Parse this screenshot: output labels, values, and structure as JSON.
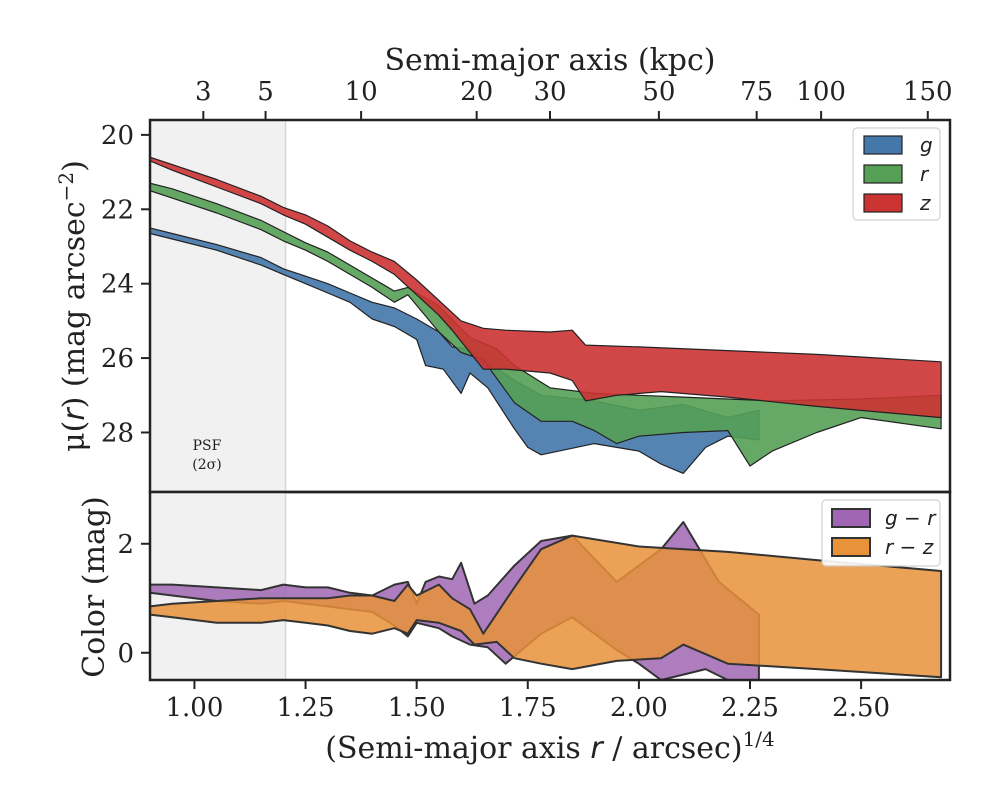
{
  "chart_data": [
    {
      "type": "area",
      "panel": "surface-brightness",
      "ylabel_main": "μ(",
      "ylabel_var": "r",
      "ylabel_rest": ") (mag arcsec",
      "ylabel_sup": "−2",
      "ylabel_close": ")",
      "ylim": [
        29.6,
        19.6
      ],
      "xlim": [
        0.9,
        2.7
      ],
      "yticks": [
        20,
        22,
        24,
        26,
        28
      ],
      "top_axis_title": "Semi-major axis (kpc)",
      "top_ticks": [
        {
          "label": "3",
          "at": 1.02
        },
        {
          "label": "5",
          "at": 1.16
        },
        {
          "label": "10",
          "at": 1.375
        },
        {
          "label": "20",
          "at": 1.635
        },
        {
          "label": "30",
          "at": 1.8
        },
        {
          "label": "50",
          "at": 2.045
        },
        {
          "label": "75",
          "at": 2.265
        },
        {
          "label": "100",
          "at": 2.41
        },
        {
          "label": "150",
          "at": 2.65
        }
      ],
      "shaded_region": {
        "x0": 0.9,
        "x1": 1.205,
        "label_line1": "PSF",
        "label_line2": "(2σ)"
      },
      "legend_position": "top-right",
      "series": [
        {
          "name": "g",
          "color": "#4477aa",
          "upper": [
            [
              0.9,
              22.5
            ],
            [
              0.95,
              22.65
            ],
            [
              1.05,
              22.95
            ],
            [
              1.15,
              23.3
            ],
            [
              1.2,
              23.6
            ],
            [
              1.25,
              23.8
            ],
            [
              1.3,
              24.0
            ],
            [
              1.35,
              24.25
            ],
            [
              1.4,
              24.5
            ],
            [
              1.45,
              24.65
            ],
            [
              1.5,
              24.95
            ],
            [
              1.55,
              25.3
            ],
            [
              1.58,
              25.7
            ],
            [
              1.62,
              25.75
            ],
            [
              1.66,
              26.1
            ],
            [
              1.72,
              26.6
            ],
            [
              1.78,
              27.0
            ],
            [
              1.9,
              27.15
            ],
            [
              2.0,
              27.4
            ],
            [
              2.1,
              27.25
            ],
            [
              2.2,
              27.6
            ],
            [
              2.27,
              27.4
            ]
          ],
          "lower": [
            [
              0.9,
              22.65
            ],
            [
              0.95,
              22.8
            ],
            [
              1.05,
              23.1
            ],
            [
              1.15,
              23.5
            ],
            [
              1.2,
              23.75
            ],
            [
              1.25,
              24.0
            ],
            [
              1.3,
              24.25
            ],
            [
              1.35,
              24.5
            ],
            [
              1.4,
              24.95
            ],
            [
              1.45,
              25.15
            ],
            [
              1.5,
              25.5
            ],
            [
              1.52,
              26.2
            ],
            [
              1.56,
              26.3
            ],
            [
              1.6,
              26.95
            ],
            [
              1.62,
              26.4
            ],
            [
              1.66,
              26.8
            ],
            [
              1.72,
              27.9
            ],
            [
              1.75,
              28.4
            ],
            [
              1.78,
              28.6
            ],
            [
              1.9,
              28.3
            ],
            [
              2.0,
              28.5
            ],
            [
              2.05,
              28.85
            ],
            [
              2.1,
              29.1
            ],
            [
              2.15,
              28.4
            ],
            [
              2.2,
              28.1
            ],
            [
              2.27,
              28.2
            ]
          ]
        },
        {
          "name": "r",
          "color": "#55a055",
          "upper": [
            [
              0.9,
              21.3
            ],
            [
              0.95,
              21.45
            ],
            [
              1.05,
              21.85
            ],
            [
              1.15,
              22.3
            ],
            [
              1.2,
              22.6
            ],
            [
              1.25,
              22.9
            ],
            [
              1.3,
              23.15
            ],
            [
              1.35,
              23.5
            ],
            [
              1.4,
              23.85
            ],
            [
              1.45,
              24.2
            ],
            [
              1.48,
              24.1
            ],
            [
              1.55,
              24.6
            ],
            [
              1.62,
              25.45
            ],
            [
              1.68,
              25.75
            ],
            [
              1.72,
              26.2
            ],
            [
              1.8,
              26.8
            ],
            [
              1.9,
              26.95
            ],
            [
              2.0,
              27.0
            ],
            [
              2.1,
              27.05
            ],
            [
              2.2,
              27.1
            ],
            [
              2.3,
              27.15
            ],
            [
              2.5,
              27.1
            ],
            [
              2.68,
              27.0
            ]
          ],
          "lower": [
            [
              0.9,
              21.5
            ],
            [
              0.95,
              21.7
            ],
            [
              1.05,
              22.1
            ],
            [
              1.15,
              22.55
            ],
            [
              1.2,
              22.85
            ],
            [
              1.25,
              23.1
            ],
            [
              1.3,
              23.4
            ],
            [
              1.35,
              23.75
            ],
            [
              1.4,
              24.1
            ],
            [
              1.45,
              24.5
            ],
            [
              1.48,
              24.3
            ],
            [
              1.55,
              25.3
            ],
            [
              1.6,
              25.85
            ],
            [
              1.65,
              26.05
            ],
            [
              1.72,
              27.2
            ],
            [
              1.78,
              27.7
            ],
            [
              1.85,
              27.7
            ],
            [
              1.9,
              27.95
            ],
            [
              1.95,
              28.3
            ],
            [
              2.0,
              28.1
            ],
            [
              2.1,
              28.0
            ],
            [
              2.2,
              27.95
            ],
            [
              2.25,
              28.9
            ],
            [
              2.3,
              28.5
            ],
            [
              2.4,
              28.0
            ],
            [
              2.5,
              27.6
            ],
            [
              2.68,
              27.9
            ]
          ]
        },
        {
          "name": "z",
          "color": "#cc3333",
          "upper": [
            [
              0.9,
              20.6
            ],
            [
              0.95,
              20.8
            ],
            [
              1.05,
              21.2
            ],
            [
              1.15,
              21.65
            ],
            [
              1.2,
              21.95
            ],
            [
              1.25,
              22.15
            ],
            [
              1.3,
              22.45
            ],
            [
              1.35,
              22.85
            ],
            [
              1.4,
              23.15
            ],
            [
              1.45,
              23.4
            ],
            [
              1.5,
              23.9
            ],
            [
              1.55,
              24.45
            ],
            [
              1.6,
              25.0
            ],
            [
              1.65,
              25.2
            ],
            [
              1.7,
              25.25
            ],
            [
              1.8,
              25.3
            ],
            [
              1.85,
              25.25
            ],
            [
              1.88,
              25.65
            ],
            [
              2.0,
              25.7
            ],
            [
              2.2,
              25.8
            ],
            [
              2.4,
              25.9
            ],
            [
              2.68,
              26.1
            ]
          ],
          "lower": [
            [
              0.9,
              20.7
            ],
            [
              0.95,
              20.95
            ],
            [
              1.05,
              21.4
            ],
            [
              1.15,
              21.85
            ],
            [
              1.2,
              22.15
            ],
            [
              1.25,
              22.4
            ],
            [
              1.3,
              22.75
            ],
            [
              1.35,
              23.1
            ],
            [
              1.4,
              23.4
            ],
            [
              1.45,
              23.75
            ],
            [
              1.5,
              24.3
            ],
            [
              1.55,
              24.85
            ],
            [
              1.58,
              25.25
            ],
            [
              1.62,
              25.85
            ],
            [
              1.65,
              26.3
            ],
            [
              1.7,
              26.3
            ],
            [
              1.8,
              26.4
            ],
            [
              1.85,
              26.6
            ],
            [
              1.88,
              27.15
            ],
            [
              1.95,
              27.0
            ],
            [
              2.05,
              26.9
            ],
            [
              2.2,
              27.05
            ],
            [
              2.4,
              27.3
            ],
            [
              2.68,
              27.6
            ]
          ]
        }
      ]
    },
    {
      "type": "area",
      "panel": "color",
      "ylabel": "Color (mag)",
      "ylim": [
        -0.5,
        2.95
      ],
      "xlim": [
        0.9,
        2.7
      ],
      "yticks": [
        0,
        2
      ],
      "xticks": [
        "1.00",
        "1.25",
        "1.50",
        "1.75",
        "2.00",
        "2.25",
        "2.50"
      ],
      "xtick_values": [
        1.0,
        1.25,
        1.5,
        1.75,
        2.0,
        2.25,
        2.5
      ],
      "xlabel_main": "(Semi-major axis ",
      "xlabel_var": "r",
      "xlabel_rest": " / arcsec)",
      "xlabel_sup": "1/4",
      "legend_position": "top-right",
      "series": [
        {
          "name": "g − r",
          "legend_a": "g",
          "legend_op": " − ",
          "legend_b": "r",
          "color": "#a066b3",
          "upper": [
            [
              0.9,
              1.25
            ],
            [
              0.95,
              1.25
            ],
            [
              1.05,
              1.2
            ],
            [
              1.15,
              1.15
            ],
            [
              1.2,
              1.25
            ],
            [
              1.25,
              1.2
            ],
            [
              1.3,
              1.2
            ],
            [
              1.35,
              1.1
            ],
            [
              1.4,
              1.05
            ],
            [
              1.45,
              1.25
            ],
            [
              1.48,
              1.3
            ],
            [
              1.5,
              0.9
            ],
            [
              1.52,
              1.3
            ],
            [
              1.55,
              1.4
            ],
            [
              1.58,
              1.35
            ],
            [
              1.6,
              1.65
            ],
            [
              1.63,
              0.9
            ],
            [
              1.66,
              1.05
            ],
            [
              1.72,
              1.6
            ],
            [
              1.78,
              2.05
            ],
            [
              1.85,
              2.15
            ],
            [
              1.95,
              1.3
            ],
            [
              2.05,
              1.9
            ],
            [
              2.1,
              2.4
            ],
            [
              2.18,
              1.3
            ],
            [
              2.27,
              0.7
            ]
          ],
          "lower": [
            [
              0.9,
              1.1
            ],
            [
              0.95,
              1.05
            ],
            [
              1.05,
              0.95
            ],
            [
              1.15,
              0.9
            ],
            [
              1.2,
              0.95
            ],
            [
              1.25,
              0.9
            ],
            [
              1.3,
              0.85
            ],
            [
              1.35,
              0.8
            ],
            [
              1.4,
              0.75
            ],
            [
              1.45,
              0.5
            ],
            [
              1.48,
              0.3
            ],
            [
              1.5,
              0.55
            ],
            [
              1.55,
              0.45
            ],
            [
              1.58,
              0.3
            ],
            [
              1.62,
              0.15
            ],
            [
              1.66,
              0.1
            ],
            [
              1.7,
              -0.2
            ],
            [
              1.78,
              0.35
            ],
            [
              1.85,
              0.65
            ],
            [
              1.95,
              0.05
            ],
            [
              2.0,
              -0.2
            ],
            [
              2.05,
              -0.5
            ],
            [
              2.1,
              -0.4
            ],
            [
              2.15,
              -0.3
            ],
            [
              2.2,
              -0.5
            ],
            [
              2.27,
              -0.5
            ]
          ]
        },
        {
          "name": "r − z",
          "legend_a": "r",
          "legend_op": " − ",
          "legend_b": "z",
          "color": "#e8923a",
          "upper": [
            [
              0.9,
              0.85
            ],
            [
              0.95,
              0.9
            ],
            [
              1.05,
              0.95
            ],
            [
              1.15,
              1.0
            ],
            [
              1.2,
              1.0
            ],
            [
              1.25,
              1.0
            ],
            [
              1.3,
              1.0
            ],
            [
              1.35,
              1.05
            ],
            [
              1.4,
              1.05
            ],
            [
              1.45,
              0.95
            ],
            [
              1.48,
              1.25
            ],
            [
              1.5,
              1.05
            ],
            [
              1.55,
              1.25
            ],
            [
              1.58,
              1.0
            ],
            [
              1.62,
              0.8
            ],
            [
              1.65,
              0.35
            ],
            [
              1.72,
              1.2
            ],
            [
              1.78,
              1.9
            ],
            [
              1.85,
              2.15
            ],
            [
              2.0,
              1.95
            ],
            [
              2.2,
              1.85
            ],
            [
              2.4,
              1.7
            ],
            [
              2.68,
              1.5
            ]
          ],
          "lower": [
            [
              0.9,
              0.7
            ],
            [
              0.95,
              0.65
            ],
            [
              1.05,
              0.55
            ],
            [
              1.15,
              0.55
            ],
            [
              1.2,
              0.6
            ],
            [
              1.25,
              0.55
            ],
            [
              1.3,
              0.5
            ],
            [
              1.35,
              0.4
            ],
            [
              1.4,
              0.35
            ],
            [
              1.45,
              0.45
            ],
            [
              1.48,
              0.35
            ],
            [
              1.5,
              0.6
            ],
            [
              1.55,
              0.55
            ],
            [
              1.6,
              0.4
            ],
            [
              1.63,
              0.15
            ],
            [
              1.68,
              0.2
            ],
            [
              1.72,
              -0.1
            ],
            [
              1.78,
              -0.2
            ],
            [
              1.85,
              -0.3
            ],
            [
              1.95,
              -0.15
            ],
            [
              2.05,
              -0.1
            ],
            [
              2.1,
              0.15
            ],
            [
              2.2,
              -0.2
            ],
            [
              2.4,
              -0.3
            ],
            [
              2.68,
              -0.45
            ]
          ]
        }
      ]
    }
  ]
}
